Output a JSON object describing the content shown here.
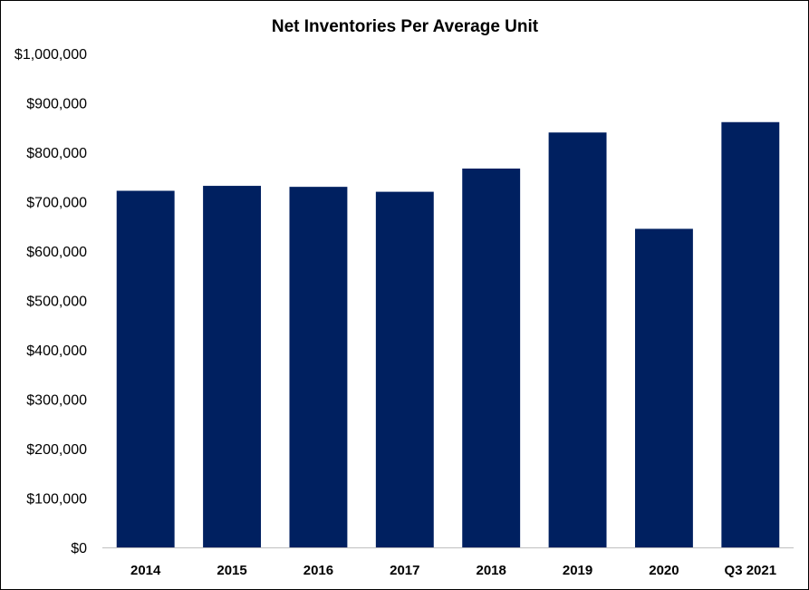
{
  "chart_data": {
    "type": "bar",
    "title": "Net Inventories Per Average Unit",
    "categories": [
      "2014",
      "2015",
      "2016",
      "2017",
      "2018",
      "2019",
      "2020",
      "Q3 2021"
    ],
    "values": [
      722000,
      732000,
      730000,
      720000,
      767000,
      840000,
      645000,
      861000
    ],
    "xlabel": "",
    "ylabel": "",
    "ylim": [
      0,
      1000000
    ],
    "yticks": [
      0,
      100000,
      200000,
      300000,
      400000,
      500000,
      600000,
      700000,
      800000,
      900000,
      1000000
    ],
    "ytick_labels": [
      "$0",
      "$100,000",
      "$200,000",
      "$300,000",
      "$400,000",
      "$500,000",
      "$600,000",
      "$700,000",
      "$800,000",
      "$900,000",
      "$1,000,000"
    ],
    "grid": false,
    "legend": "none",
    "bar_color": "#002060",
    "axis_color": "#bfbfbf"
  }
}
